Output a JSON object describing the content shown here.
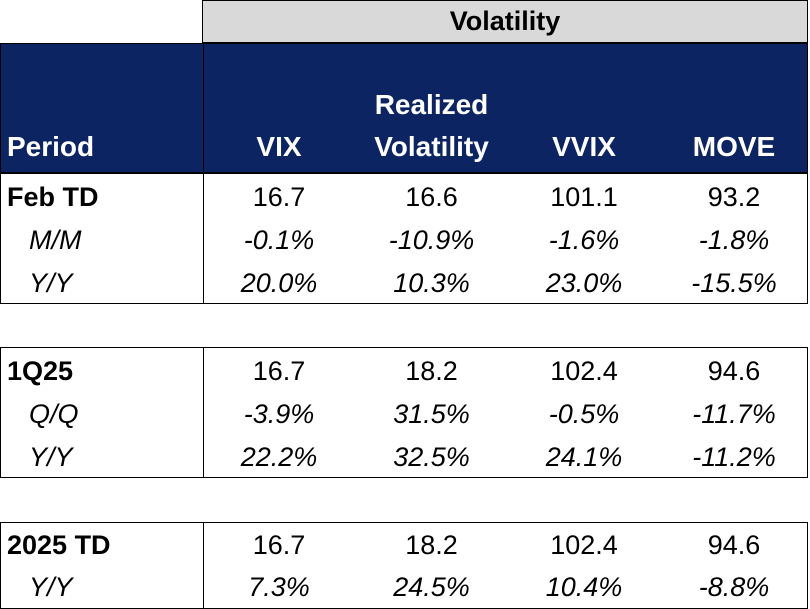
{
  "title": "Volatility",
  "columns": {
    "period": "Period",
    "vix": "VIX",
    "realized_line1": "Realized",
    "realized_line2": "Volatility",
    "vvix": "VVIX",
    "move": "MOVE"
  },
  "blocks": [
    {
      "rows": [
        {
          "label": "Feb TD",
          "vix": "16.7",
          "realized": "16.6",
          "vvix": "101.1",
          "move": "93.2"
        },
        {
          "label": "M/M",
          "vix": "-0.1%",
          "realized": "-10.9%",
          "vvix": "-1.6%",
          "move": "-1.8%"
        },
        {
          "label": "Y/Y",
          "vix": "20.0%",
          "realized": "10.3%",
          "vvix": "23.0%",
          "move": "-15.5%"
        }
      ]
    },
    {
      "rows": [
        {
          "label": "1Q25",
          "vix": "16.7",
          "realized": "18.2",
          "vvix": "102.4",
          "move": "94.6"
        },
        {
          "label": "Q/Q",
          "vix": "-3.9%",
          "realized": "31.5%",
          "vvix": "-0.5%",
          "move": "-11.7%"
        },
        {
          "label": "Y/Y",
          "vix": "22.2%",
          "realized": "32.5%",
          "vvix": "24.1%",
          "move": "-11.2%"
        }
      ]
    },
    {
      "rows": [
        {
          "label": "2025 TD",
          "vix": "16.7",
          "realized": "18.2",
          "vvix": "102.4",
          "move": "94.6"
        },
        {
          "label": "Y/Y",
          "vix": "7.3%",
          "realized": "24.5%",
          "vvix": "10.4%",
          "move": "-8.8%"
        }
      ]
    }
  ]
}
